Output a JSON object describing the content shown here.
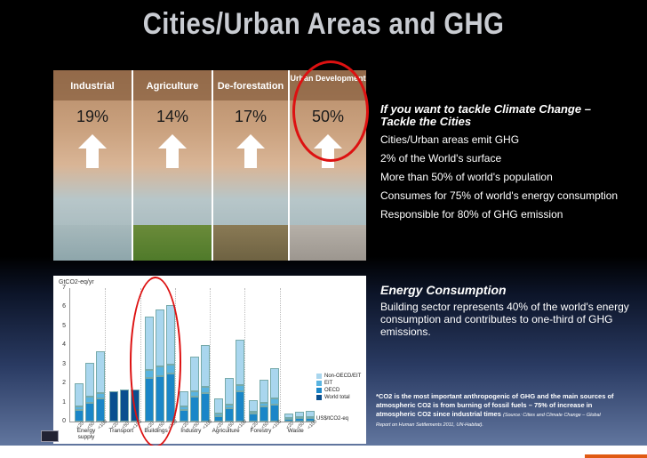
{
  "title": "Cities/Urban Areas and GHG",
  "panels": [
    {
      "label": "Industrial",
      "pct": "19%"
    },
    {
      "label": "Agriculture",
      "pct": "14%"
    },
    {
      "label": "De-forestation",
      "pct": "17%"
    },
    {
      "label": "Urban Development",
      "pct": "50%"
    }
  ],
  "right_top": {
    "heading": "If you want to tackle Climate Change – Tackle the Cities",
    "bullets": [
      "Cities/Urban areas emit GHG",
      "2% of the World's surface",
      "More than 50% of world's population",
      "Consumes for 75% of world's energy consumption",
      "Responsible for 80% of GHG emission"
    ]
  },
  "right_bottom": {
    "heading": "Energy Consumption",
    "body": "Building sector represents 40% of the world's energy consumption and contributes to one-third of GHG emissions.",
    "note": "*CO2 is the most important anthropogenic of GHG and the main sources of atmospheric CO2 is from burning of fossil fuels – 75% of increase in atmospheric CO2 since industrial times",
    "source": "(Source: Cities and Climate Change – Global Report on Human Settlements 2011, UN-Habitat)."
  },
  "chart_data": {
    "type": "bar",
    "ylabel": "GtCO2-eq/yr",
    "ylim": [
      0,
      7
    ],
    "yticks": [
      "0",
      "1",
      "2",
      "3",
      "4",
      "5",
      "6",
      "7"
    ],
    "unit_note": "US$/tCO2-eq",
    "x_ticks": [
      "<20",
      "<50",
      "<100"
    ],
    "sectors": [
      "Energy supply",
      "Transport",
      "Buildings",
      "Industry",
      "Agriculture",
      "Forestry",
      "Waste"
    ],
    "series_names": [
      "Non-OECD/EIT",
      "EIT",
      "OECD",
      "World total"
    ],
    "colors": {
      "Non-OECD/EIT": "#a9d6ee",
      "EIT": "#5ab4e0",
      "OECD": "#1a86c8",
      "World total": "#0a4f8f"
    },
    "stacks": [
      [
        [
          1.2,
          0.2,
          0.6
        ],
        [
          1.8,
          0.3,
          1.0
        ],
        [
          2.2,
          0.3,
          1.2
        ]
      ],
      [
        [
          0.0,
          0.0,
          1.6
        ],
        [
          0.0,
          0.0,
          1.7
        ],
        [
          0.0,
          0.0,
          1.7
        ]
      ],
      [
        [
          2.8,
          0.4,
          2.3
        ],
        [
          3.0,
          0.5,
          2.4
        ],
        [
          3.1,
          0.5,
          2.5
        ]
      ],
      [
        [
          0.8,
          0.2,
          0.6
        ],
        [
          1.8,
          0.3,
          1.3
        ],
        [
          2.2,
          0.3,
          1.5
        ]
      ],
      [
        [
          0.8,
          0.1,
          0.3
        ],
        [
          1.4,
          0.2,
          0.7
        ],
        [
          2.4,
          0.3,
          1.6
        ]
      ],
      [
        [
          0.6,
          0.1,
          0.4
        ],
        [
          1.2,
          0.2,
          0.8
        ],
        [
          1.6,
          0.3,
          0.9
        ]
      ],
      [
        [
          0.2,
          0.05,
          0.15
        ],
        [
          0.25,
          0.05,
          0.2
        ],
        [
          0.3,
          0.05,
          0.2
        ]
      ]
    ]
  }
}
